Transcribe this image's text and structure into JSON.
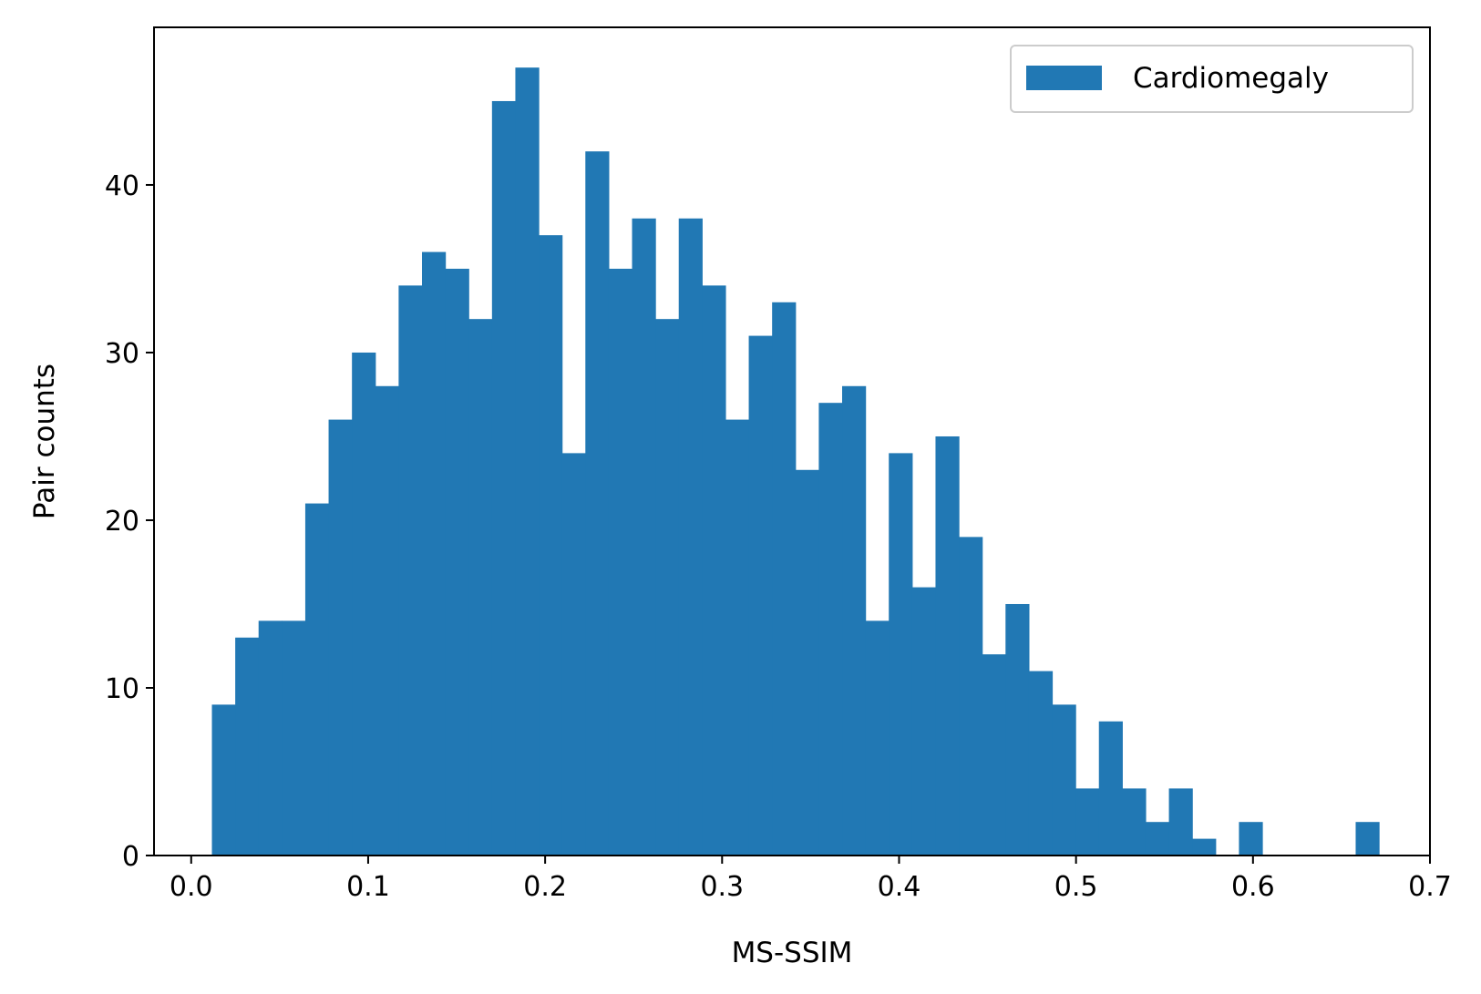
{
  "chart_data": {
    "type": "bar",
    "subtype": "histogram",
    "title": "",
    "xlabel": "MS-SSIM",
    "ylabel": "Pair counts",
    "xlim": [
      -0.021,
      0.7
    ],
    "ylim": [
      0,
      49.4
    ],
    "xticks": [
      0.0,
      0.1,
      0.2,
      0.3,
      0.4,
      0.5,
      0.6,
      0.7
    ],
    "xtick_labels": [
      "0.0",
      "0.1",
      "0.2",
      "0.3",
      "0.4",
      "0.5",
      "0.6",
      "0.7"
    ],
    "yticks": [
      0,
      10,
      20,
      30,
      40
    ],
    "ytick_labels": [
      "0",
      "10",
      "20",
      "30",
      "40"
    ],
    "grid": false,
    "legend": {
      "position": "top-right",
      "entries": [
        "Cardiomegaly"
      ]
    },
    "series": [
      {
        "name": "Cardiomegaly",
        "color": "#2178b4",
        "bin_start": 0.0117,
        "bin_width": 0.01319,
        "values": [
          9,
          13,
          14,
          14,
          21,
          26,
          30,
          28,
          34,
          36,
          35,
          32,
          45,
          47,
          37,
          24,
          42,
          35,
          38,
          32,
          38,
          34,
          26,
          31,
          33,
          23,
          27,
          28,
          14,
          24,
          16,
          25,
          19,
          12,
          15,
          11,
          9,
          4,
          8,
          4,
          2,
          4,
          1,
          0,
          2,
          0,
          0,
          0,
          0,
          2
        ]
      }
    ]
  }
}
